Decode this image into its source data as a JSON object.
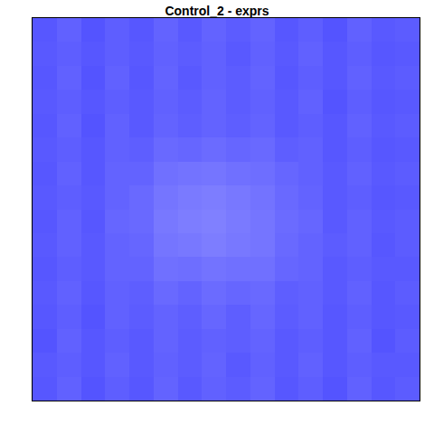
{
  "chart_data": {
    "type": "heatmap",
    "title": "Control_2 - exprs",
    "xlim": [
      -0.5,
      15.5
    ],
    "ylim": [
      -0.5,
      15.5
    ],
    "tick_labels": false,
    "grid": false,
    "colors": [
      "#0000ff",
      "#ffffff"
    ],
    "color_range": [
      0,
      1
    ],
    "cells": [
      [
        0.34,
        0.38,
        0.33,
        0.37,
        0.34,
        0.39,
        0.35,
        0.38,
        0.36,
        0.39,
        0.34,
        0.37,
        0.33,
        0.38,
        0.34,
        0.36
      ],
      [
        0.35,
        0.37,
        0.34,
        0.38,
        0.35,
        0.38,
        0.36,
        0.39,
        0.35,
        0.38,
        0.35,
        0.38,
        0.34,
        0.37,
        0.35,
        0.35
      ],
      [
        0.33,
        0.38,
        0.34,
        0.37,
        0.35,
        0.39,
        0.36,
        0.38,
        0.37,
        0.39,
        0.35,
        0.37,
        0.34,
        0.38,
        0.33,
        0.36
      ],
      [
        0.34,
        0.37,
        0.33,
        0.38,
        0.36,
        0.39,
        0.37,
        0.4,
        0.37,
        0.4,
        0.36,
        0.38,
        0.34,
        0.37,
        0.34,
        0.35
      ],
      [
        0.35,
        0.38,
        0.34,
        0.38,
        0.37,
        0.41,
        0.39,
        0.42,
        0.4,
        0.41,
        0.37,
        0.38,
        0.35,
        0.38,
        0.34,
        0.36
      ],
      [
        0.34,
        0.37,
        0.35,
        0.39,
        0.39,
        0.44,
        0.43,
        0.45,
        0.44,
        0.44,
        0.4,
        0.39,
        0.35,
        0.37,
        0.35,
        0.35
      ],
      [
        0.35,
        0.38,
        0.35,
        0.39,
        0.4,
        0.46,
        0.47,
        0.49,
        0.47,
        0.46,
        0.41,
        0.39,
        0.36,
        0.38,
        0.34,
        0.36
      ],
      [
        0.34,
        0.38,
        0.34,
        0.4,
        0.41,
        0.47,
        0.49,
        0.5,
        0.48,
        0.46,
        0.42,
        0.4,
        0.35,
        0.38,
        0.35,
        0.36
      ],
      [
        0.35,
        0.37,
        0.35,
        0.39,
        0.41,
        0.46,
        0.48,
        0.49,
        0.47,
        0.45,
        0.41,
        0.39,
        0.35,
        0.37,
        0.34,
        0.35
      ],
      [
        0.34,
        0.38,
        0.34,
        0.39,
        0.39,
        0.44,
        0.45,
        0.46,
        0.44,
        0.43,
        0.4,
        0.38,
        0.35,
        0.38,
        0.35,
        0.36
      ],
      [
        0.35,
        0.37,
        0.34,
        0.38,
        0.37,
        0.41,
        0.4,
        0.42,
        0.4,
        0.41,
        0.37,
        0.38,
        0.34,
        0.37,
        0.34,
        0.35
      ],
      [
        0.34,
        0.38,
        0.33,
        0.38,
        0.35,
        0.39,
        0.37,
        0.39,
        0.37,
        0.39,
        0.35,
        0.37,
        0.34,
        0.38,
        0.35,
        0.36
      ],
      [
        0.35,
        0.37,
        0.34,
        0.37,
        0.35,
        0.38,
        0.36,
        0.39,
        0.36,
        0.38,
        0.35,
        0.38,
        0.33,
        0.37,
        0.34,
        0.35
      ],
      [
        0.34,
        0.38,
        0.33,
        0.38,
        0.34,
        0.39,
        0.35,
        0.38,
        0.36,
        0.39,
        0.34,
        0.37,
        0.34,
        0.38,
        0.35,
        0.36
      ],
      [
        0.35,
        0.37,
        0.34,
        0.37,
        0.35,
        0.38,
        0.36,
        0.38,
        0.35,
        0.38,
        0.35,
        0.38,
        0.34,
        0.37,
        0.34,
        0.35
      ],
      [
        0.34,
        0.38,
        0.33,
        0.37,
        0.34,
        0.39,
        0.35,
        0.39,
        0.36,
        0.39,
        0.34,
        0.37,
        0.33,
        0.38,
        0.35,
        0.36
      ]
    ]
  }
}
